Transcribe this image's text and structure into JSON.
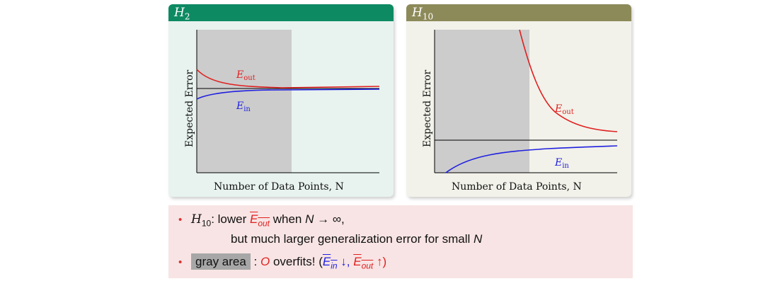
{
  "panels": [
    {
      "header_base": "H",
      "header_sub": "2",
      "ylabel": "Expected Error",
      "xlabel": "Number of Data Points, N",
      "e_out_label": "E",
      "e_out_sub": "out",
      "e_in_label": "E",
      "e_in_sub": "in"
    },
    {
      "header_base": "H",
      "header_sub": "10",
      "ylabel": "Expected Error",
      "xlabel": "Number of Data Points, N",
      "e_out_label": "E",
      "e_out_sub": "out",
      "e_in_label": "E",
      "e_in_sub": "in"
    }
  ],
  "bullets": {
    "b1": {
      "h_base": "H",
      "h_sub": "10",
      "text1": ": lower ",
      "eout": "E",
      "eout_sub": "out",
      "text2": " when ",
      "N": "N",
      "arrow": " → ∞,",
      "line2": "but much larger generalization error for small ",
      "line2_N": "N"
    },
    "b2": {
      "gray": "gray area",
      "colon": " : ",
      "O": "O",
      "text": " overfits! (",
      "ein": "E",
      "ein_sub": "in",
      "down": " ↓, ",
      "eout": "E",
      "eout_sub": "out",
      "up": " ↑)"
    }
  },
  "colors": {
    "eout": "#e02020",
    "ein": "#2020e0",
    "gray_area": "#cccccc",
    "h2_header": "#0e8a63",
    "h10_header": "#8d8a5a"
  }
}
